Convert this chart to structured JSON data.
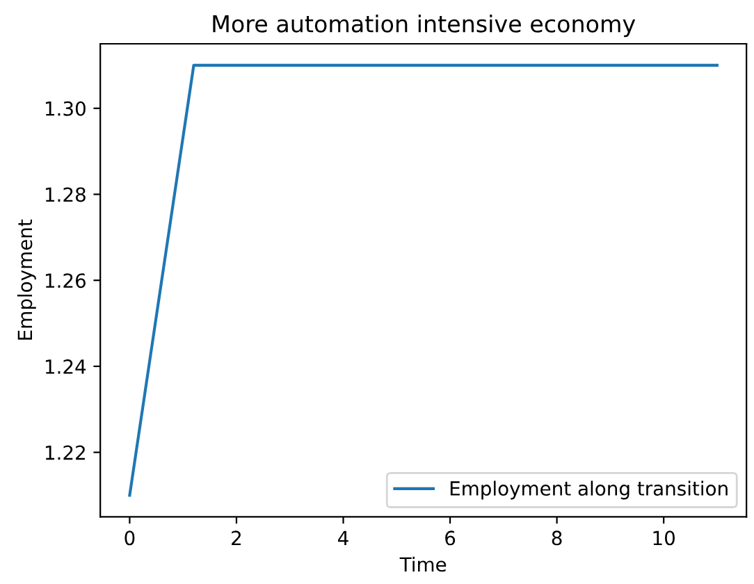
{
  "chart_data": {
    "type": "line",
    "title": "More automation intensive economy",
    "xlabel": "Time",
    "ylabel": "Employment",
    "series": [
      {
        "name": "Employment along transition",
        "color": "#1f77b4",
        "x": [
          0,
          1.2,
          11
        ],
        "values": [
          1.21,
          1.31,
          1.31
        ]
      }
    ],
    "xlim": [
      -0.55,
      11.55
    ],
    "xticks": [
      0,
      2,
      4,
      6,
      8,
      10
    ],
    "ylim": [
      1.205,
      1.315
    ],
    "yticks": [
      {
        "value": 1.22,
        "label": "1.22"
      },
      {
        "value": 1.24,
        "label": "1.24"
      },
      {
        "value": 1.26,
        "label": "1.26"
      },
      {
        "value": 1.28,
        "label": "1.28"
      },
      {
        "value": 1.3,
        "label": "1.30"
      }
    ],
    "legend": "lower right",
    "grid": false,
    "marker": "none",
    "line_style": "solid"
  }
}
